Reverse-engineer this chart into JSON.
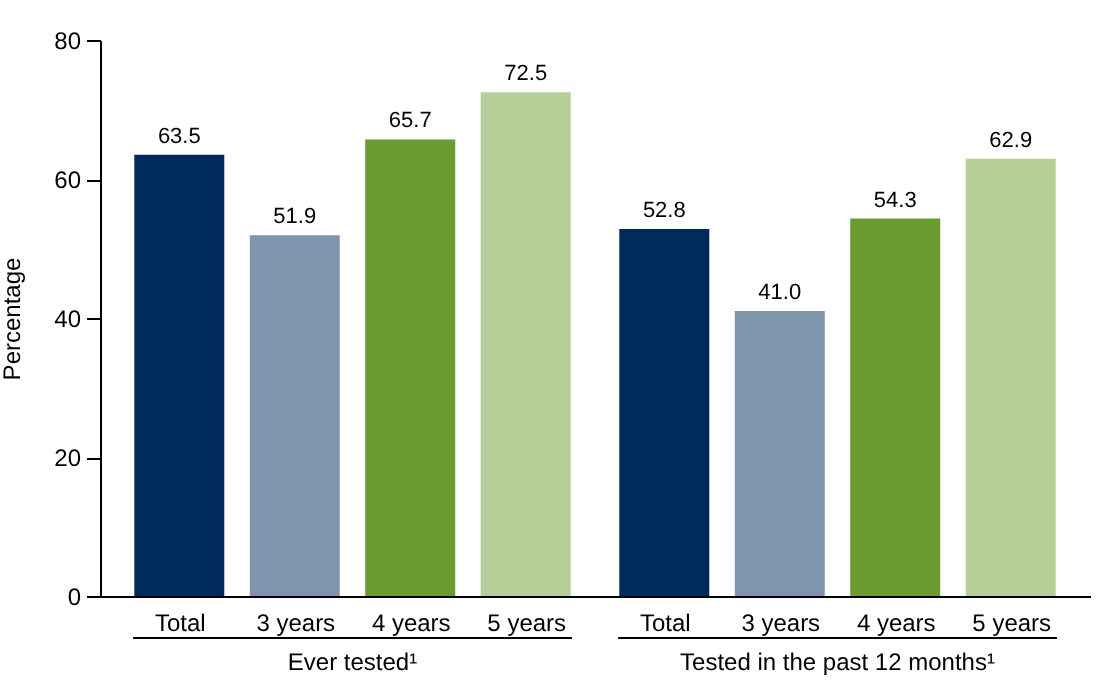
{
  "chart_data": {
    "type": "bar",
    "ylabel": "Percentage",
    "categories": [
      "Total",
      "3 years",
      "4 years",
      "5 years",
      "Total",
      "3 years",
      "4 years",
      "5 years"
    ],
    "values": [
      63.5,
      51.9,
      65.7,
      72.5,
      52.8,
      41.0,
      54.3,
      62.9
    ],
    "colors": [
      "#002a5c",
      "#8094ae",
      "#6b9a31",
      "#b6cf98",
      "#002a5c",
      "#8094ae",
      "#6b9a31",
      "#b6cf98"
    ],
    "value_labels": [
      "63.5",
      "51.9",
      "65.7",
      "72.5",
      "52.8",
      "41.0",
      "54.3",
      "62.9"
    ],
    "ylim": [
      0,
      80
    ],
    "yticks": [
      0,
      20,
      40,
      60,
      80
    ],
    "grid": false,
    "annotations": [
      "Ever tested¹",
      "Tested in the past 12 months¹"
    ]
  }
}
